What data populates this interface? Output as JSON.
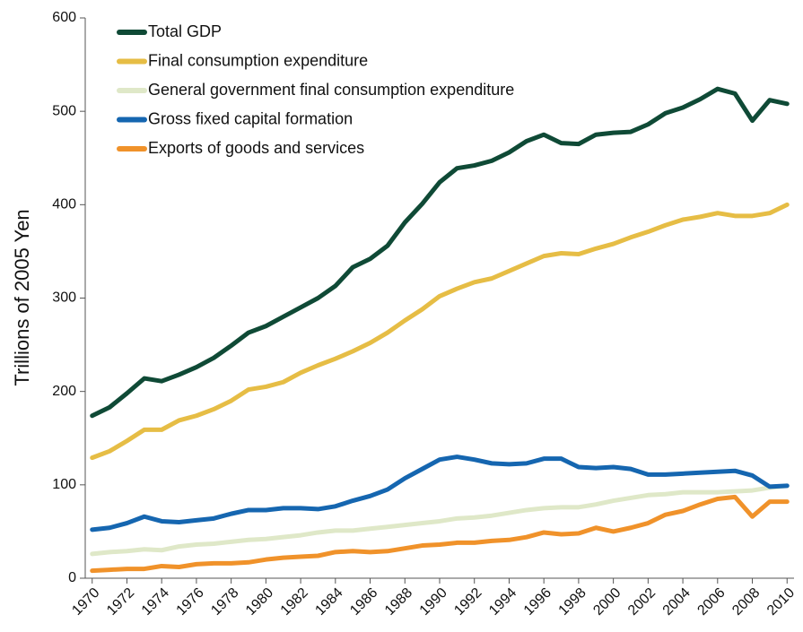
{
  "chart_data": {
    "type": "line",
    "y_label": "Trillions of 2005 Yen",
    "x": [
      1970,
      1971,
      1972,
      1973,
      1974,
      1975,
      1976,
      1977,
      1978,
      1979,
      1980,
      1981,
      1982,
      1983,
      1984,
      1985,
      1986,
      1987,
      1988,
      1989,
      1990,
      1991,
      1992,
      1993,
      1994,
      1995,
      1996,
      1997,
      1998,
      1999,
      2000,
      2001,
      2002,
      2003,
      2004,
      2005,
      2006,
      2007,
      2008,
      2009,
      2010
    ],
    "xlim": [
      1969.6,
      2010.4
    ],
    "xticks": [
      1970,
      1972,
      1974,
      1976,
      1978,
      1980,
      1982,
      1984,
      1986,
      1988,
      1990,
      1992,
      1994,
      1996,
      1998,
      2000,
      2002,
      2004,
      2006,
      2008,
      2010
    ],
    "ylim": [
      0,
      600
    ],
    "yticks": [
      0,
      100,
      200,
      300,
      400,
      500,
      600
    ],
    "legend": "upper left",
    "series": [
      {
        "name": "Total GDP",
        "color": "#0f4a36",
        "values": [
          174,
          183,
          198,
          214,
          211,
          218,
          226,
          236,
          249,
          263,
          270,
          280,
          290,
          300,
          313,
          333,
          342,
          356,
          381,
          401,
          424,
          439,
          442,
          447,
          456,
          468,
          475,
          466,
          465,
          475,
          477,
          478,
          486,
          498,
          504,
          513,
          524,
          519,
          490,
          512,
          508
        ]
      },
      {
        "name": "Final consumption expenditure",
        "color": "#e6bd45",
        "values": [
          129,
          136,
          147,
          159,
          159,
          169,
          174,
          181,
          190,
          202,
          205,
          210,
          220,
          228,
          235,
          243,
          252,
          263,
          276,
          288,
          302,
          310,
          317,
          321,
          329,
          337,
          345,
          348,
          347,
          353,
          358,
          365,
          371,
          378,
          384,
          387,
          391,
          388,
          388,
          391,
          400
        ]
      },
      {
        "name": "General government final consumption expenditure",
        "color": "#dfe8c8",
        "values": [
          26,
          28,
          29,
          31,
          30,
          34,
          36,
          37,
          39,
          41,
          42,
          44,
          46,
          49,
          51,
          51,
          53,
          55,
          57,
          59,
          61,
          64,
          65,
          67,
          70,
          73,
          75,
          76,
          76,
          79,
          83,
          86,
          89,
          90,
          92,
          92,
          92,
          93,
          94,
          97,
          99
        ]
      },
      {
        "name": "Gross fixed capital formation",
        "color": "#1566b0",
        "values": [
          52,
          54,
          59,
          66,
          61,
          60,
          62,
          64,
          69,
          73,
          73,
          75,
          75,
          74,
          77,
          83,
          88,
          95,
          107,
          117,
          127,
          130,
          127,
          123,
          122,
          123,
          128,
          128,
          119,
          118,
          119,
          117,
          111,
          111,
          112,
          113,
          114,
          115,
          110,
          98,
          99
        ]
      },
      {
        "name": "Exports of goods and services",
        "color": "#f0922a",
        "values": [
          8,
          9,
          10,
          10,
          13,
          12,
          15,
          16,
          16,
          17,
          20,
          22,
          23,
          24,
          28,
          29,
          28,
          29,
          32,
          35,
          36,
          38,
          38,
          40,
          41,
          44,
          49,
          47,
          48,
          54,
          50,
          54,
          59,
          68,
          72,
          79,
          85,
          87,
          66,
          82,
          82
        ]
      }
    ]
  }
}
